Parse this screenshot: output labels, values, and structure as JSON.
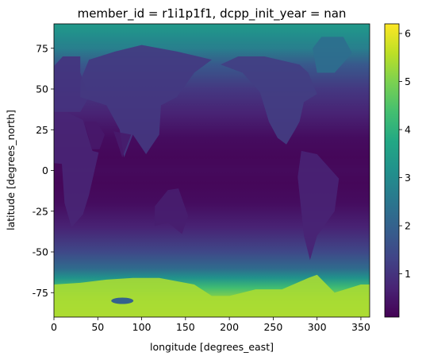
{
  "chart_data": {
    "type": "heatmap",
    "title": "member_id = r1i1p1f1, dcpp_init_year = nan",
    "xlabel": "longitude [degrees_east]",
    "ylabel": "latitude [degrees_north]",
    "xlim": [
      0,
      360
    ],
    "ylim": [
      -90,
      90
    ],
    "x_ticks": [
      0,
      50,
      100,
      150,
      200,
      250,
      300,
      350
    ],
    "y_ticks": [
      75,
      50,
      25,
      0,
      -25,
      -50,
      -75
    ],
    "colormap": "viridis",
    "colorbar": {
      "range": [
        0.1,
        6.2
      ],
      "ticks": [
        1,
        2,
        3,
        4,
        5,
        6
      ]
    },
    "grid": false,
    "latitude_profile": [
      {
        "lat": 88,
        "value": 3.3
      },
      {
        "lat": 82,
        "value": 3.0
      },
      {
        "lat": 75,
        "value": 2.7
      },
      {
        "lat": 65,
        "value": 1.8
      },
      {
        "lat": 50,
        "value": 1.1
      },
      {
        "lat": 35,
        "value": 0.7
      },
      {
        "lat": 20,
        "value": 0.3
      },
      {
        "lat": 8,
        "value": 0.2
      },
      {
        "lat": 0,
        "value": 0.25
      },
      {
        "lat": -8,
        "value": 0.2
      },
      {
        "lat": -20,
        "value": 0.3
      },
      {
        "lat": -35,
        "value": 0.7
      },
      {
        "lat": -50,
        "value": 1.4
      },
      {
        "lat": -60,
        "value": 2.2
      },
      {
        "lat": -66,
        "value": 3.2
      },
      {
        "lat": -72,
        "value": 4.3
      },
      {
        "lat": -80,
        "value": 5.3
      },
      {
        "lat": -90,
        "value": 5.8
      }
    ]
  }
}
